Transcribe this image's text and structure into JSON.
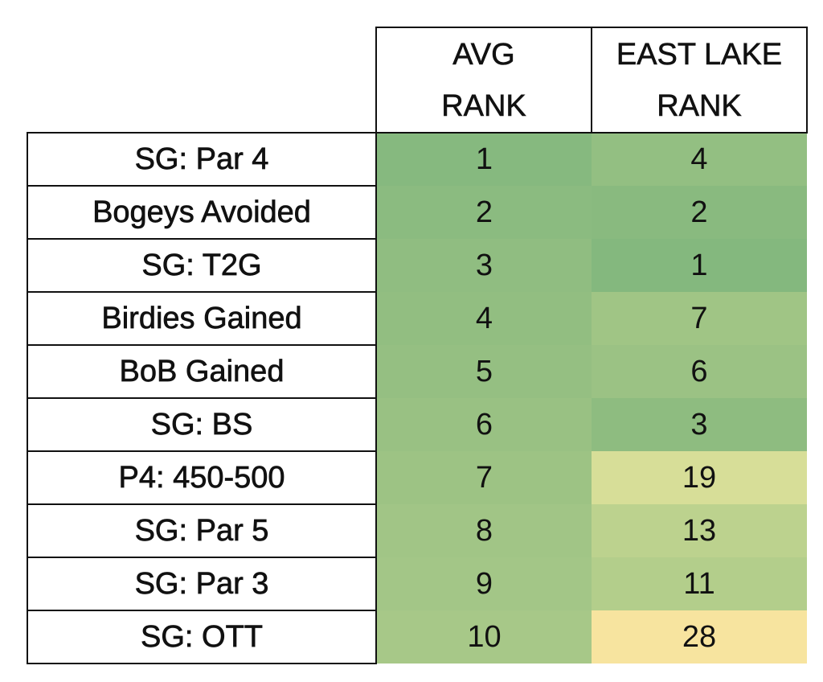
{
  "chart_data": {
    "type": "table",
    "columns": [
      {
        "lines": [
          "AVG",
          "RANK"
        ]
      },
      {
        "lines": [
          "EAST LAKE",
          "RANK"
        ]
      }
    ],
    "rows": [
      {
        "label": "SG: Par 4",
        "avg_rank": "1",
        "east_lake_rank": "4",
        "avg_color": "#86b97f",
        "east_color": "#93bf82"
      },
      {
        "label": "Bogeys Avoided",
        "avg_rank": "2",
        "east_lake_rank": "2",
        "avg_color": "#8bbb80",
        "east_color": "#89ba7f"
      },
      {
        "label": "SG: T2G",
        "avg_rank": "3",
        "east_lake_rank": "1",
        "avg_color": "#90bd81",
        "east_color": "#84b87e"
      },
      {
        "label": "Birdies Gained",
        "avg_rank": "4",
        "east_lake_rank": "7",
        "avg_color": "#92be81",
        "east_color": "#a0c585"
      },
      {
        "label": "BoB Gained",
        "avg_rank": "5",
        "east_lake_rank": "6",
        "avg_color": "#95bf82",
        "east_color": "#9bc284"
      },
      {
        "label": "SG: BS",
        "avg_rank": "6",
        "east_lake_rank": "3",
        "avg_color": "#99c183",
        "east_color": "#8ebc80"
      },
      {
        "label": "P4: 450-500",
        "avg_rank": "7",
        "east_lake_rank": "19",
        "avg_color": "#9dc384",
        "east_color": "#d7de98"
      },
      {
        "label": "SG: Par 5",
        "avg_rank": "8",
        "east_lake_rank": "13",
        "avg_color": "#a1c586",
        "east_color": "#bcd28e"
      },
      {
        "label": "SG: Par 3",
        "avg_rank": "9",
        "east_lake_rank": "11",
        "avg_color": "#a3c687",
        "east_color": "#b3ce8b"
      },
      {
        "label": "SG: OTT",
        "avg_rank": "10",
        "east_lake_rank": "28",
        "avg_color": "#a7c888",
        "east_color": "#f7e49f"
      }
    ]
  }
}
